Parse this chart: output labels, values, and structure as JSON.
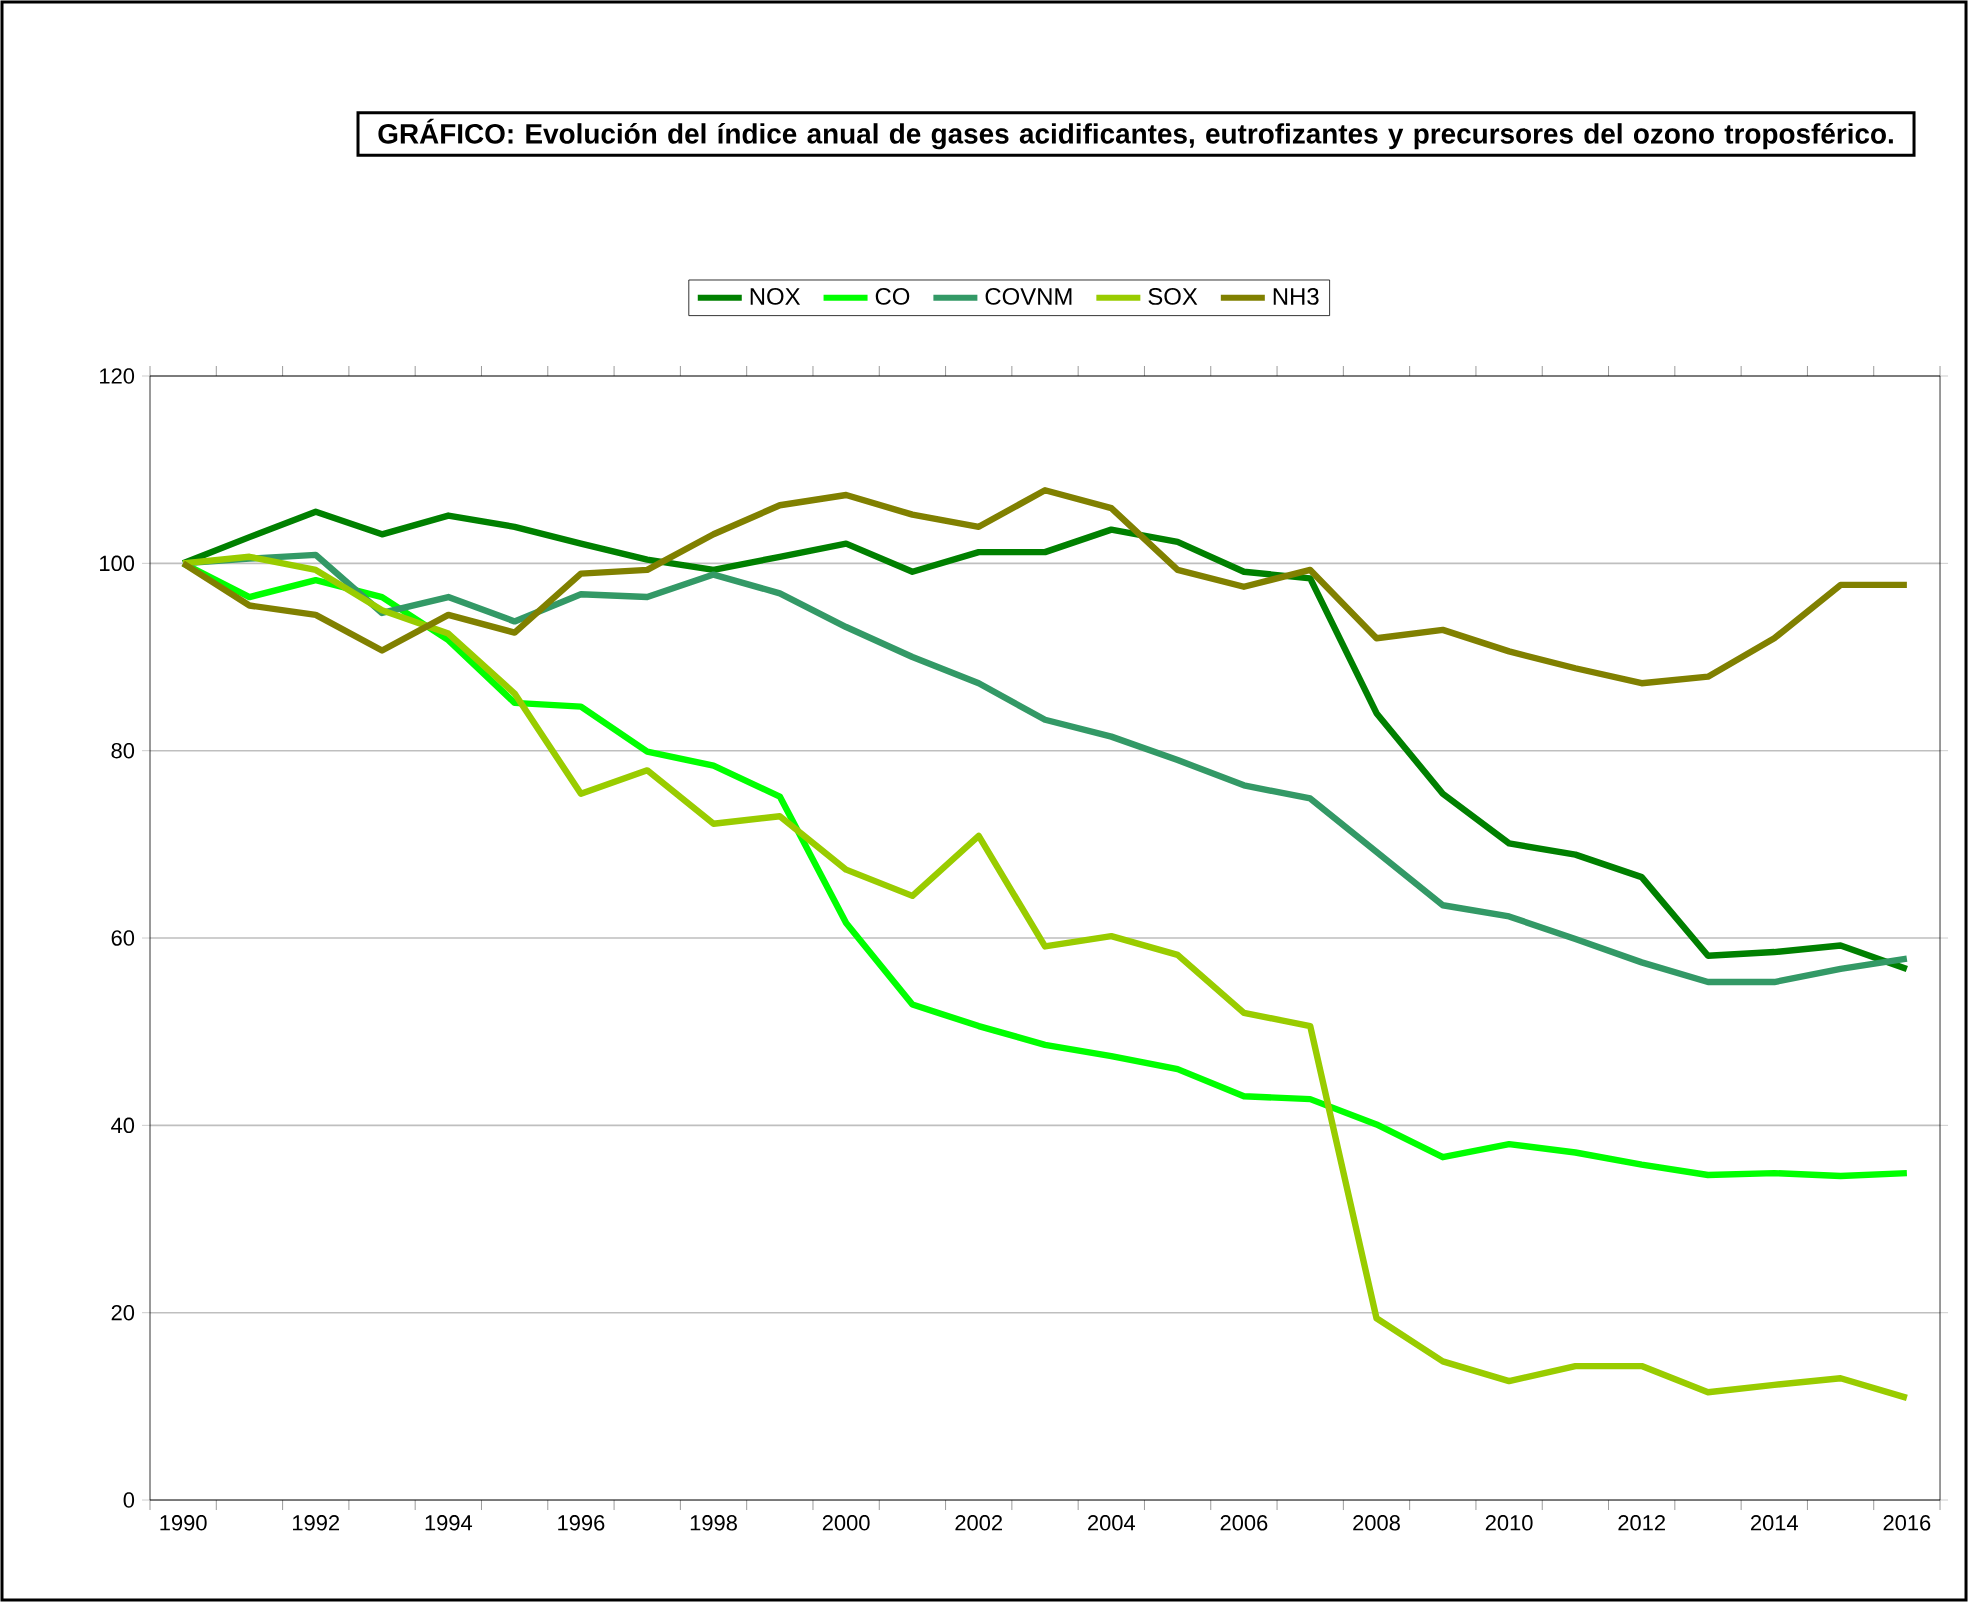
{
  "chart_data": {
    "type": "line",
    "title": "GRÁFICO: Evolución del índice anual de gases acidificantes, eutrofizantes y precursores del ozono troposférico.",
    "categories": [
      "1990",
      null,
      "1992",
      null,
      "1994",
      null,
      "1996",
      null,
      "1998",
      null,
      "2000",
      null,
      "2002",
      null,
      "2004",
      null,
      "2006",
      null,
      "2008",
      null,
      "2010",
      null,
      "2012",
      null,
      "2014",
      null,
      "2016"
    ],
    "series": [
      {
        "name": "NOX",
        "color": "#008000",
        "values": [
          100,
          102.8,
          105.5,
          103.1,
          105.1,
          103.9,
          102.1,
          100.4,
          99.3,
          100.7,
          102.1,
          99.1,
          101.2,
          101.2,
          103.6,
          102.3,
          99.1,
          98.4,
          84.0,
          75.4,
          70.1,
          68.9,
          66.5,
          58.1,
          58.5,
          59.2,
          56.7
        ]
      },
      {
        "name": "CO",
        "color": "#00ff00",
        "values": [
          100,
          96.4,
          98.2,
          96.4,
          91.8,
          85.1,
          84.7,
          79.9,
          78.4,
          75.1,
          61.6,
          52.9,
          50.6,
          48.6,
          47.4,
          46.0,
          43.1,
          42.8,
          40.1,
          36.6,
          38.0,
          37.1,
          35.8,
          34.7,
          34.9,
          34.6,
          34.9
        ]
      },
      {
        "name": "COVNM",
        "color": "#339966",
        "values": [
          100,
          100.5,
          100.9,
          94.7,
          96.4,
          93.8,
          96.7,
          96.4,
          98.8,
          96.8,
          93.2,
          90.0,
          87.2,
          83.3,
          81.5,
          79.0,
          76.3,
          74.9,
          69.2,
          63.5,
          62.3,
          59.9,
          57.4,
          55.3,
          55.3,
          56.7,
          57.8
        ]
      },
      {
        "name": "SOX",
        "color": "#99cc00",
        "values": [
          100,
          100.7,
          99.3,
          95.0,
          92.5,
          86.1,
          75.4,
          77.9,
          72.2,
          73.0,
          67.3,
          64.5,
          70.9,
          59.1,
          60.2,
          58.2,
          52.0,
          50.6,
          19.4,
          14.8,
          12.7,
          14.3,
          14.3,
          11.5,
          12.3,
          13.0,
          10.9
        ]
      },
      {
        "name": "NH3",
        "color": "#808000",
        "values": [
          100,
          95.5,
          94.5,
          90.7,
          94.5,
          92.6,
          98.9,
          99.3,
          103.1,
          106.2,
          107.3,
          105.2,
          103.9,
          107.8,
          105.9,
          99.3,
          97.5,
          99.3,
          92.0,
          92.9,
          90.6,
          88.8,
          87.2,
          87.9,
          92.0,
          97.7,
          97.7
        ]
      }
    ],
    "ylim": [
      0,
      120
    ],
    "yticks": [
      0,
      20,
      40,
      60,
      80,
      100,
      120
    ],
    "grid": "y",
    "legend": "top"
  }
}
